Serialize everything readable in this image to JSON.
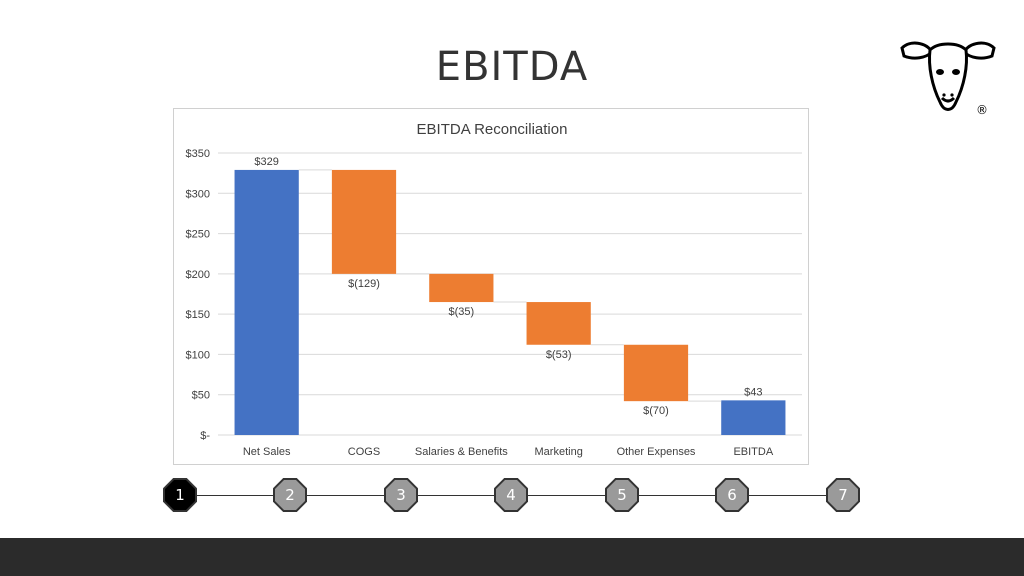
{
  "slide": {
    "title": "EBITDA"
  },
  "logo": {
    "symbol": "®",
    "icon": "sheep-head-icon"
  },
  "chart_data": {
    "type": "waterfall",
    "title": "EBITDA Reconciliation",
    "categories": [
      "Net Sales",
      "COGS",
      "Salaries & Benefits",
      "Marketing",
      "Other Expenses",
      "EBITDA"
    ],
    "values": [
      329,
      -129,
      -35,
      -53,
      -70,
      43
    ],
    "labels": [
      "$329",
      "$(129)",
      "$(35)",
      "$(53)",
      "$(70)",
      "$43"
    ],
    "bar_kind": [
      "total",
      "decrease",
      "decrease",
      "decrease",
      "decrease",
      "total"
    ],
    "y_tick_labels": [
      "$-",
      "$50",
      "$100",
      "$150",
      "$200",
      "$250",
      "$300",
      "$350"
    ],
    "ylim": [
      0,
      350
    ],
    "y_step": 50,
    "grid": true,
    "colors": {
      "total": "#4472C4",
      "decrease": "#ED7D31",
      "grid": "#d9d9d9",
      "connector": "#d9d9d9",
      "text": "#404040"
    }
  },
  "pager": {
    "steps": [
      "1",
      "2",
      "3",
      "4",
      "5",
      "6",
      "7"
    ],
    "active": "1"
  }
}
